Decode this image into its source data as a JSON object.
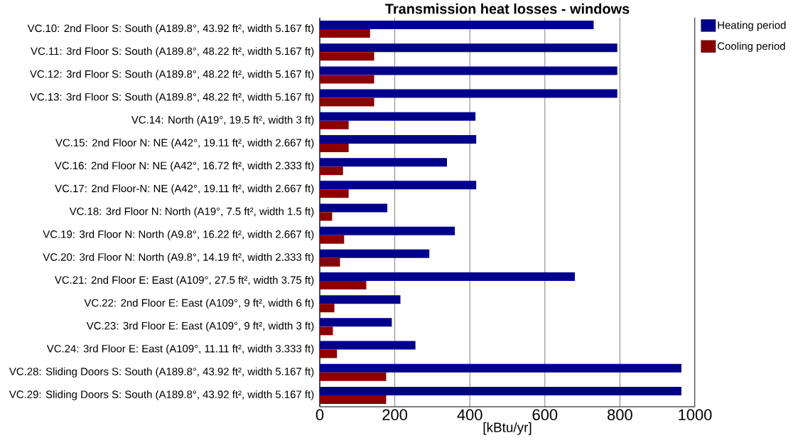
{
  "chart_data": {
    "type": "bar",
    "orientation": "horizontal",
    "title": "Transmission heat losses - windows",
    "xlabel": "[kBtu/yr]",
    "categories": [
      "VC.10: 2nd Floor S: South (A189.8°, 43.92 ft², width 5.167 ft)",
      "VC.11: 3rd Floor S: South (A189.8°, 48.22 ft², width 5.167 ft)",
      "VC.12: 3rd Floor S: South (A189.8°, 48.22 ft², width 5.167 ft)",
      "VC.13: 3rd Floor S: South (A189.8°, 48.22 ft², width 5.167 ft)",
      "VC.14: North (A19°, 19.5 ft², width 3 ft)",
      "VC.15: 2nd Floor N: NE (A42°, 19.11 ft², width 2.667 ft)",
      "VC.16: 2nd Floor N: NE (A42°, 16.72 ft², width 2.333 ft)",
      "VC.17: 2nd Floor-N: NE (A42°, 19.11 ft², width 2.667 ft)",
      "VC.18: 3rd Floor N: North (A19°, 7.5 ft², width 1.5 ft)",
      "VC.19: 3rd Floor N: North (A9.8°, 16.22 ft², width 2.667 ft)",
      "VC.20: 3rd Floor N: North (A9.8°, 14.19 ft², width 2.333 ft)",
      "VC.21: 2nd Floor E: East (A109°, 27.5 ft², width 3.75 ft)",
      "VC.22: 2nd Floor E: East (A109°, 9 ft², width 6 ft)",
      "VC.23: 3rd Floor E: East (A109°, 9 ft², width 3 ft)",
      "VC.24: 3rd Floor E: East (A109°, 11.11 ft², width 3.333 ft)",
      "VC.28: Sliding Doors S: South (A189.8°, 43.92 ft², width 5.167 ft)",
      "VC.29: Sliding Doors S: South (A189.8°, 43.92 ft², width 5.167 ft)"
    ],
    "series": [
      {
        "name": "Heating period",
        "color": "#00008b",
        "values": [
          730,
          793,
          793,
          793,
          415,
          417,
          339,
          417,
          180,
          360,
          292,
          680,
          215,
          192,
          255,
          964,
          964
        ]
      },
      {
        "name": "Cooling period",
        "color": "#8b0000",
        "values": [
          134,
          145,
          145,
          145,
          77,
          77,
          62,
          77,
          33,
          65,
          54,
          124,
          39,
          35,
          46,
          177,
          177
        ]
      }
    ],
    "xlim": [
      0,
      1000
    ],
    "xticks": [
      0,
      200,
      400,
      600,
      800,
      1000
    ],
    "grid": "x",
    "legend": "top right"
  }
}
